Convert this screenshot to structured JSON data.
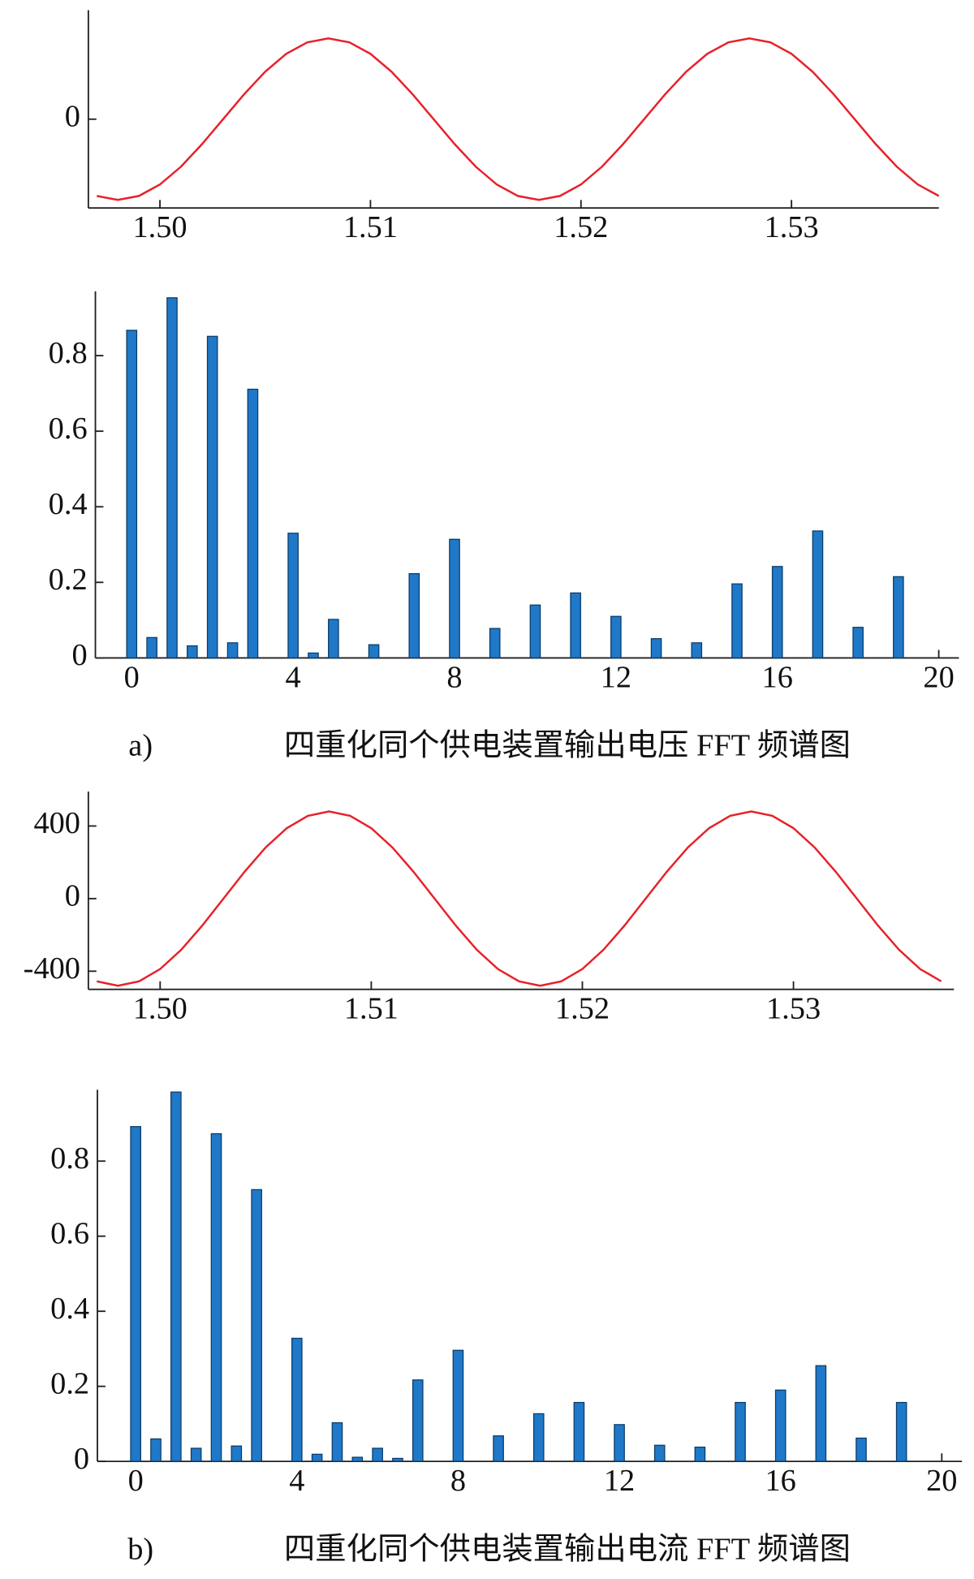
{
  "chart_data": [
    {
      "type": "line",
      "color": "#e8202a",
      "x": [
        1.497,
        1.498,
        1.499,
        1.5,
        1.501,
        1.502,
        1.503,
        1.504,
        1.505,
        1.506,
        1.507,
        1.508,
        1.509,
        1.51,
        1.511,
        1.512,
        1.513,
        1.514,
        1.515,
        1.516,
        1.517,
        1.518,
        1.519,
        1.52,
        1.521,
        1.522,
        1.523,
        1.524,
        1.525,
        1.526,
        1.527,
        1.528,
        1.529,
        1.53,
        1.531,
        1.532,
        1.533,
        1.534,
        1.535,
        1.536,
        1.537
      ],
      "values": [
        -0.951,
        -1,
        -0.951,
        -0.809,
        -0.588,
        -0.309,
        0,
        0.309,
        0.588,
        0.809,
        0.951,
        1,
        0.951,
        0.809,
        0.588,
        0.309,
        0,
        -0.309,
        -0.588,
        -0.809,
        -0.951,
        -1,
        -0.951,
        -0.809,
        -0.588,
        -0.309,
        0,
        0.309,
        0.588,
        0.809,
        0.951,
        1,
        0.951,
        0.809,
        0.588,
        0.309,
        0,
        -0.309,
        -0.588,
        -0.809,
        -0.951
      ],
      "xlim": [
        1.4966,
        1.537
      ],
      "ylim": [
        -1.1,
        1.35
      ],
      "xticks": [
        {
          "value": 1.5,
          "label": "1.50"
        },
        1.51,
        1.52,
        1.53
      ],
      "yticks": [
        0
      ]
    },
    {
      "type": "bar",
      "color": "#1f78c8",
      "x": [
        0,
        0.5,
        1,
        1.5,
        2,
        2.5,
        3,
        4,
        4.5,
        5,
        6,
        7,
        8,
        9,
        10,
        11,
        12,
        13,
        14,
        15,
        16,
        17,
        18,
        19
      ],
      "values": [
        0.867,
        0.054,
        0.953,
        0.032,
        0.851,
        0.04,
        0.711,
        0.33,
        0.013,
        0.102,
        0.035,
        0.223,
        0.314,
        0.078,
        0.14,
        0.172,
        0.11,
        0.051,
        0.04,
        0.196,
        0.242,
        0.336,
        0.081,
        0.215
      ],
      "xlim": [
        -0.9,
        20.5
      ],
      "ylim": [
        0,
        0.97
      ],
      "xticks": [
        0,
        4,
        8,
        12,
        16,
        20
      ],
      "yticks": [
        0,
        0.2,
        0.4,
        0.6,
        0.8
      ]
    },
    {
      "type": "line",
      "color": "#e8202a",
      "x": [
        1.497,
        1.498,
        1.499,
        1.5,
        1.501,
        1.502,
        1.503,
        1.504,
        1.505,
        1.506,
        1.507,
        1.508,
        1.509,
        1.51,
        1.511,
        1.512,
        1.513,
        1.514,
        1.515,
        1.516,
        1.517,
        1.518,
        1.519,
        1.52,
        1.521,
        1.522,
        1.523,
        1.524,
        1.525,
        1.526,
        1.527,
        1.528,
        1.529,
        1.53,
        1.531,
        1.532,
        1.533,
        1.534,
        1.535,
        1.536,
        1.537
      ],
      "values": [
        -456,
        -480,
        -456,
        -388,
        -282,
        -148,
        0,
        148,
        282,
        388,
        456,
        480,
        456,
        388,
        282,
        148,
        0,
        -148,
        -282,
        -388,
        -456,
        -480,
        -456,
        -388,
        -282,
        -148,
        0,
        148,
        282,
        388,
        456,
        480,
        456,
        388,
        282,
        148,
        0,
        -148,
        -282,
        -388,
        -456
      ],
      "xlim": [
        1.4966,
        1.5376
      ],
      "ylim": [
        -500,
        590
      ],
      "xticks": [
        {
          "value": 1.5,
          "label": "1.50"
        },
        1.51,
        1.52,
        1.53
      ],
      "yticks": [
        -400,
        0,
        400
      ]
    },
    {
      "type": "bar",
      "color": "#1f78c8",
      "x": [
        0,
        0.5,
        1,
        1.5,
        2,
        2.5,
        3,
        4,
        4.5,
        5,
        5.5,
        6,
        6.5,
        7,
        8,
        9,
        10,
        11,
        12,
        13,
        14,
        15,
        16,
        17,
        18,
        19
      ],
      "values": [
        0.892,
        0.06,
        0.984,
        0.035,
        0.873,
        0.041,
        0.724,
        0.328,
        0.019,
        0.103,
        0.011,
        0.035,
        0.008,
        0.217,
        0.296,
        0.068,
        0.127,
        0.157,
        0.098,
        0.043,
        0.038,
        0.157,
        0.19,
        0.255,
        0.062,
        0.157
      ],
      "xlim": [
        -0.95,
        20.5
      ],
      "ylim": [
        0,
        0.99
      ],
      "xticks": [
        0,
        4,
        8,
        12,
        16,
        20
      ],
      "yticks": [
        0,
        0.2,
        0.4,
        0.6,
        0.8
      ]
    }
  ],
  "captions": [
    {
      "label": "a)",
      "text": "四重化同个供电装置输出电压 FFT 频谱图"
    },
    {
      "label": "b)",
      "text": "四重化同个供电装置输出电流 FFT 频谱图"
    }
  ]
}
